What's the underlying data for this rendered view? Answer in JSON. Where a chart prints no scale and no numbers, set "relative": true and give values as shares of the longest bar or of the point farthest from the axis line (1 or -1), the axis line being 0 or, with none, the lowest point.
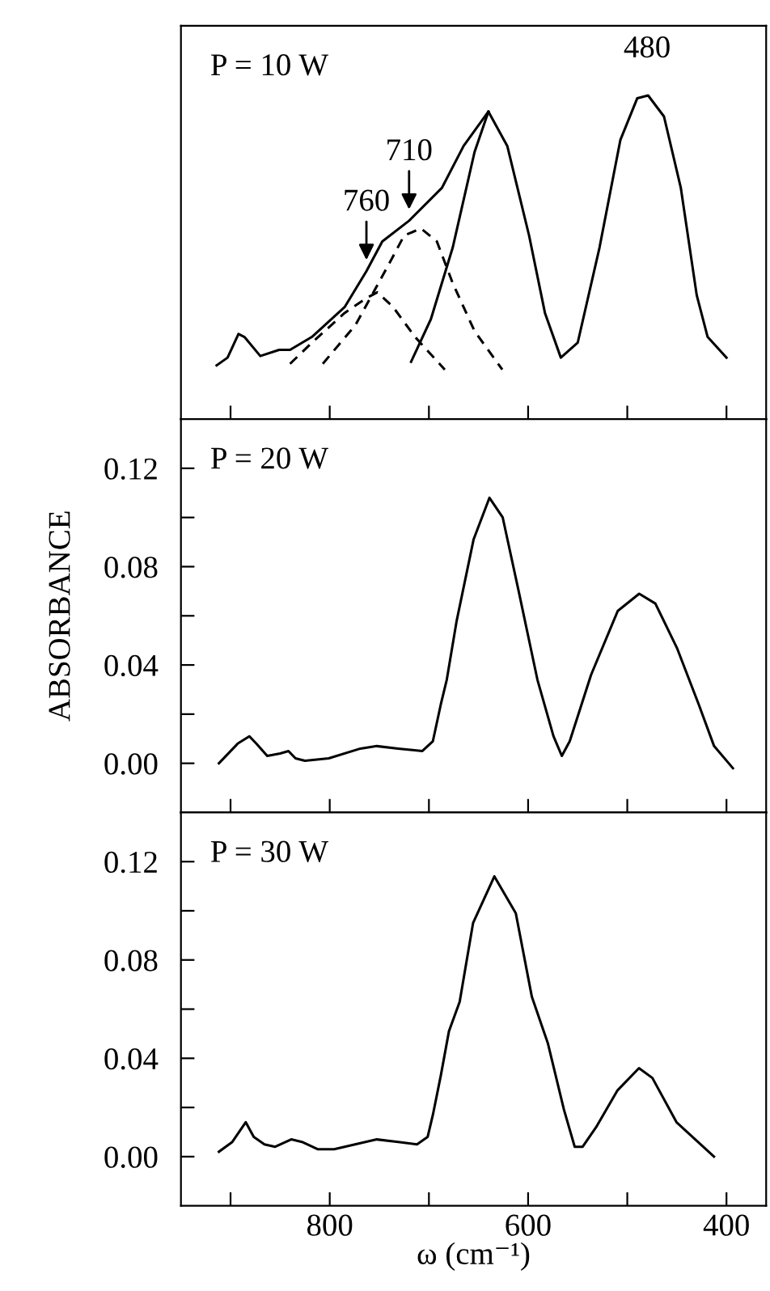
{
  "chart_data": [
    {
      "type": "line",
      "relative": true,
      "xlim": [
        950,
        360
      ],
      "xticks": [
        {
          "value": 900,
          "label": null
        },
        {
          "value": 800,
          "label": null
        },
        {
          "value": 700,
          "label": null
        },
        {
          "value": 600,
          "label": null
        },
        {
          "value": 500,
          "label": null
        },
        {
          "value": 400,
          "label": null
        }
      ],
      "tick_labels": false,
      "grid": false,
      "legend": false,
      "annotations": [
        "P = 10 W",
        {
          "text": "760",
          "x": 763,
          "y": 0.457
        },
        {
          "text": "710",
          "x": 720,
          "y": 0.613
        },
        {
          "text": "480",
          "x": 480,
          "y": 1.0
        }
      ],
      "series": [
        {
          "color": "#000000",
          "line_style": "solid",
          "x": [
            914,
            903,
            892,
            886,
            870,
            851,
            840,
            818,
            785,
            763,
            747,
            720,
            687,
            665,
            640,
            621,
            599,
            583,
            567,
            550,
            528,
            507,
            490,
            479,
            463,
            446,
            430,
            419,
            400
          ],
          "values": [
            0.166,
            0.19,
            0.263,
            0.254,
            0.195,
            0.214,
            0.214,
            0.254,
            0.346,
            0.457,
            0.549,
            0.613,
            0.714,
            0.844,
            0.95,
            0.844,
            0.567,
            0.328,
            0.19,
            0.236,
            0.53,
            0.862,
            0.991,
            1.0,
            0.935,
            0.714,
            0.383,
            0.254,
            0.19
          ]
        },
        {
          "color": "#000000",
          "line_style": "dashed",
          "x": [
            840,
            818,
            785,
            763,
            752,
            736,
            714,
            684
          ],
          "values": [
            0.171,
            0.236,
            0.328,
            0.374,
            0.392,
            0.346,
            0.254,
            0.153
          ]
        },
        {
          "color": "#000000",
          "line_style": "dashed",
          "x": [
            807,
            774,
            741,
            725,
            708,
            692,
            676,
            654,
            626
          ],
          "values": [
            0.171,
            0.291,
            0.475,
            0.567,
            0.589,
            0.549,
            0.42,
            0.272,
            0.153
          ]
        },
        {
          "color": "#000000",
          "line_style": "solid",
          "x": [
            718,
            698,
            676,
            654,
            640
          ],
          "values": [
            0.177,
            0.309,
            0.53,
            0.825,
            0.95
          ]
        }
      ]
    },
    {
      "type": "line",
      "ylabel": "ABSORBANCE",
      "xlim": [
        950,
        360
      ],
      "ylim": [
        -0.02,
        0.14
      ],
      "xticks": [
        {
          "value": 900,
          "label": null
        },
        {
          "value": 800,
          "label": null
        },
        {
          "value": 700,
          "label": null
        },
        {
          "value": 600,
          "label": null
        },
        {
          "value": 500,
          "label": null
        },
        {
          "value": 400,
          "label": null
        }
      ],
      "yticks": [
        {
          "value": 0,
          "label": "0.00"
        },
        {
          "value": 0.02,
          "label": null
        },
        {
          "value": 0.04,
          "label": "0.04"
        },
        {
          "value": 0.06,
          "label": null
        },
        {
          "value": 0.08,
          "label": "0.08"
        },
        {
          "value": 0.1,
          "label": null
        },
        {
          "value": 0.12,
          "label": "0.12"
        }
      ],
      "tick_labels": "y",
      "grid": false,
      "legend": false,
      "annotations": [
        "P = 20 W"
      ],
      "series": [
        {
          "color": "#000000",
          "line_style": "solid",
          "x": [
            911.7,
            892.8,
            881,
            874,
            863,
            850,
            841.6,
            834.5,
            825,
            801,
            769,
            752.5,
            731,
            706.6,
            696,
            688,
            682,
            672,
            655,
            639,
            625.6,
            609.5,
            590.6,
            574.4,
            566,
            558,
            536.5,
            509.6,
            488,
            471.7,
            450,
            428,
            412.5,
            393.5
          ],
          "values": [
            0.0,
            0.008,
            0.011,
            0.008,
            0.003,
            0.004,
            0.005,
            0.002,
            0.001,
            0.002,
            0.006,
            0.007,
            0.006,
            0.005,
            0.009,
            0.024,
            0.034,
            0.058,
            0.091,
            0.108,
            0.1,
            0.07,
            0.034,
            0.011,
            0.003,
            0.009,
            0.036,
            0.062,
            0.069,
            0.065,
            0.047,
            0.024,
            0.007,
            -0.002
          ]
        }
      ]
    },
    {
      "type": "line",
      "xlabel": "ω (cm⁻¹)",
      "xlim": [
        950,
        360
      ],
      "ylim": [
        -0.02,
        0.14
      ],
      "xticks": [
        {
          "value": 900,
          "label": null
        },
        800,
        {
          "value": 700,
          "label": null
        },
        600,
        {
          "value": 500,
          "label": null
        },
        400
      ],
      "yticks": [
        {
          "value": 0,
          "label": "0.00"
        },
        {
          "value": 0.02,
          "label": null
        },
        {
          "value": 0.04,
          "label": "0.04"
        },
        {
          "value": 0.06,
          "label": null
        },
        {
          "value": 0.08,
          "label": "0.08"
        },
        {
          "value": 0.1,
          "label": null
        },
        {
          "value": 0.12,
          "label": "0.12"
        }
      ],
      "grid": false,
      "legend": false,
      "annotations": [
        "P = 30 W"
      ],
      "series": [
        {
          "color": "#000000",
          "line_style": "solid",
          "x": [
            911.7,
            898.2,
            884.7,
            876.6,
            865.8,
            855,
            838.8,
            828,
            811.8,
            795.6,
            752.5,
            731,
            712,
            701.3,
            696,
            688,
            679.8,
            669,
            655.5,
            634,
            612.4,
            596.2,
            580,
            563.8,
            553,
            545,
            531.4,
            509.8,
            488.2,
            474.7,
            450.4,
            412.6
          ],
          "values": [
            0.002,
            0.006,
            0.014,
            0.008,
            0.005,
            0.004,
            0.007,
            0.006,
            0.003,
            0.003,
            0.007,
            0.006,
            0.005,
            0.008,
            0.017,
            0.033,
            0.051,
            0.063,
            0.095,
            0.114,
            0.099,
            0.065,
            0.046,
            0.019,
            0.004,
            0.004,
            0.012,
            0.027,
            0.036,
            0.032,
            0.014,
            0.0
          ]
        }
      ]
    }
  ]
}
